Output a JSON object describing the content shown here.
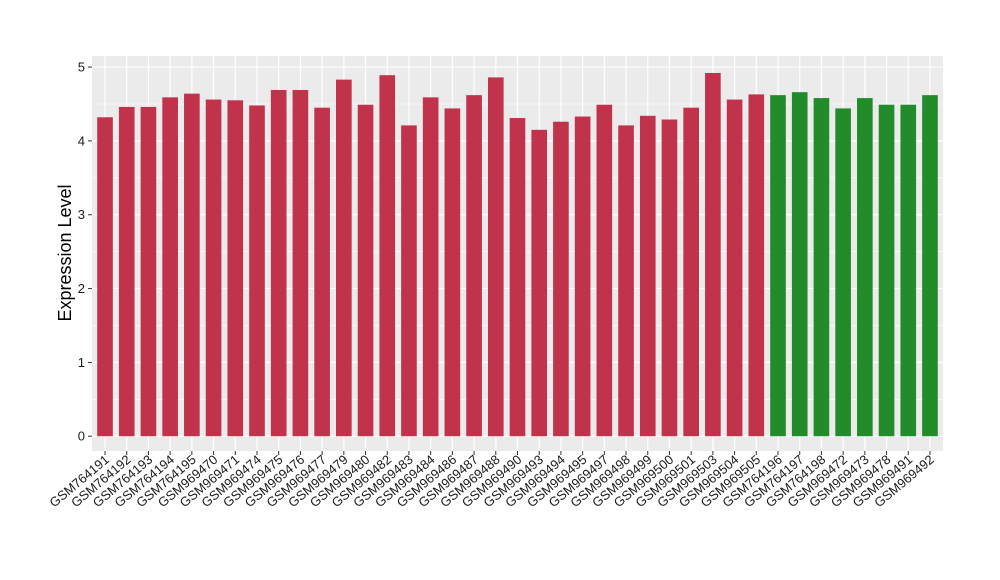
{
  "chart_data": {
    "type": "bar",
    "ylabel": "Expression Level",
    "xlabel": "",
    "ylim": [
      -0.2,
      5.15
    ],
    "yticks": [
      0,
      1,
      2,
      3,
      4,
      5
    ],
    "grid": true,
    "categories": [
      "GSM764191",
      "GSM764192",
      "GSM764193",
      "GSM764194",
      "GSM764195",
      "GSM969470",
      "GSM969471",
      "GSM969474",
      "GSM969475",
      "GSM969476",
      "GSM969477",
      "GSM969479",
      "GSM969480",
      "GSM969482",
      "GSM969483",
      "GSM969484",
      "GSM969486",
      "GSM969487",
      "GSM969488",
      "GSM969490",
      "GSM969493",
      "GSM969494",
      "GSM969495",
      "GSM969497",
      "GSM969498",
      "GSM969499",
      "GSM969500",
      "GSM969501",
      "GSM969503",
      "GSM969504",
      "GSM969505",
      "GSM764196",
      "GSM764197",
      "GSM764198",
      "GSM969472",
      "GSM969473",
      "GSM969478",
      "GSM969491",
      "GSM969492"
    ],
    "values": [
      4.32,
      4.46,
      4.46,
      4.59,
      4.64,
      4.56,
      4.55,
      4.48,
      4.69,
      4.69,
      4.45,
      4.83,
      4.49,
      4.89,
      4.21,
      4.59,
      4.44,
      4.62,
      4.86,
      4.31,
      4.15,
      4.26,
      4.33,
      4.49,
      4.21,
      4.34,
      4.29,
      4.45,
      4.92,
      4.56,
      4.63,
      4.62,
      4.66,
      4.58,
      4.44,
      4.58,
      4.49,
      4.49,
      4.62
    ],
    "bar_colors": [
      "#c0334a",
      "#c0334a",
      "#c0334a",
      "#c0334a",
      "#c0334a",
      "#c0334a",
      "#c0334a",
      "#c0334a",
      "#c0334a",
      "#c0334a",
      "#c0334a",
      "#c0334a",
      "#c0334a",
      "#c0334a",
      "#c0334a",
      "#c0334a",
      "#c0334a",
      "#c0334a",
      "#c0334a",
      "#c0334a",
      "#c0334a",
      "#c0334a",
      "#c0334a",
      "#c0334a",
      "#c0334a",
      "#c0334a",
      "#c0334a",
      "#c0334a",
      "#c0334a",
      "#c0334a",
      "#c0334a",
      "#228b2a",
      "#228b2a",
      "#228b2a",
      "#228b2a",
      "#228b2a",
      "#228b2a",
      "#228b2a",
      "#228b2a"
    ],
    "panel_background": "#ebebeb",
    "grid_color": "#ffffff"
  }
}
